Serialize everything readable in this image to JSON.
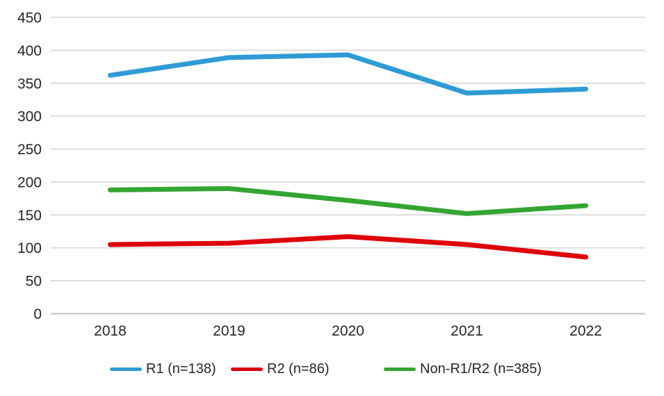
{
  "chart_data": {
    "type": "line",
    "title": "",
    "xlabel": "",
    "ylabel": "",
    "x": [
      "2018",
      "2019",
      "2020",
      "2021",
      "2022"
    ],
    "series": [
      {
        "name": "R1 (n=138)",
        "color": "#2E9BD5",
        "values": [
          362,
          389,
          393,
          335,
          341
        ]
      },
      {
        "name": "R2 (n=86)",
        "color": "#DE0209",
        "values": [
          105,
          107,
          117,
          105,
          86
        ]
      },
      {
        "name": "Non-R1/R2 (n=385)",
        "color": "#33A532",
        "values": [
          188,
          190,
          172,
          152,
          164
        ]
      }
    ],
    "ylim": [
      0,
      450
    ],
    "ytick_step": 50,
    "ytick_labels": [
      "0",
      "50",
      "100",
      "150",
      "200",
      "250",
      "300",
      "350",
      "400",
      "450"
    ],
    "grid": true,
    "legend_position": "bottom",
    "colors": {
      "gridline": "#D9D9D9",
      "axis_line": "#BFBFBF",
      "tick_label": "#262626",
      "background": "#FFFFFF"
    }
  }
}
